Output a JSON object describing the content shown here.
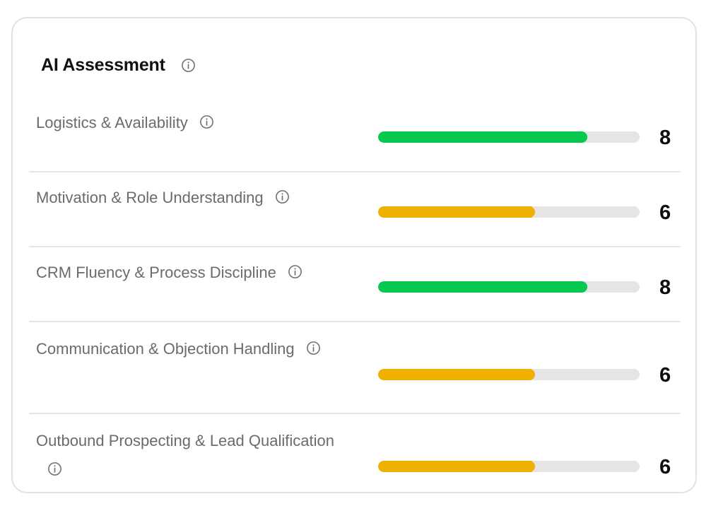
{
  "card": {
    "title": "AI Assessment",
    "title_icon": "info-icon"
  },
  "max_score": 10,
  "colors": {
    "high": "#08c94f",
    "medium": "#efb000",
    "track": "#e5e5e5"
  },
  "criteria": [
    {
      "label": "Logistics & Availability",
      "score": "8",
      "value": 8,
      "level": "high",
      "icon": "info-icon"
    },
    {
      "label": "Motivation & Role Understanding",
      "score": "6",
      "value": 6,
      "level": "medium",
      "icon": "info-icon"
    },
    {
      "label": "CRM Fluency & Process Discipline",
      "score": "8",
      "value": 8,
      "level": "high",
      "icon": "info-icon"
    },
    {
      "label": "Communication & Objection Handling",
      "score": "6",
      "value": 6,
      "level": "medium",
      "icon": "info-icon"
    },
    {
      "label": "Outbound Prospecting & Lead Qualification",
      "score": "6",
      "value": 6,
      "level": "medium",
      "icon": "info-icon"
    }
  ]
}
